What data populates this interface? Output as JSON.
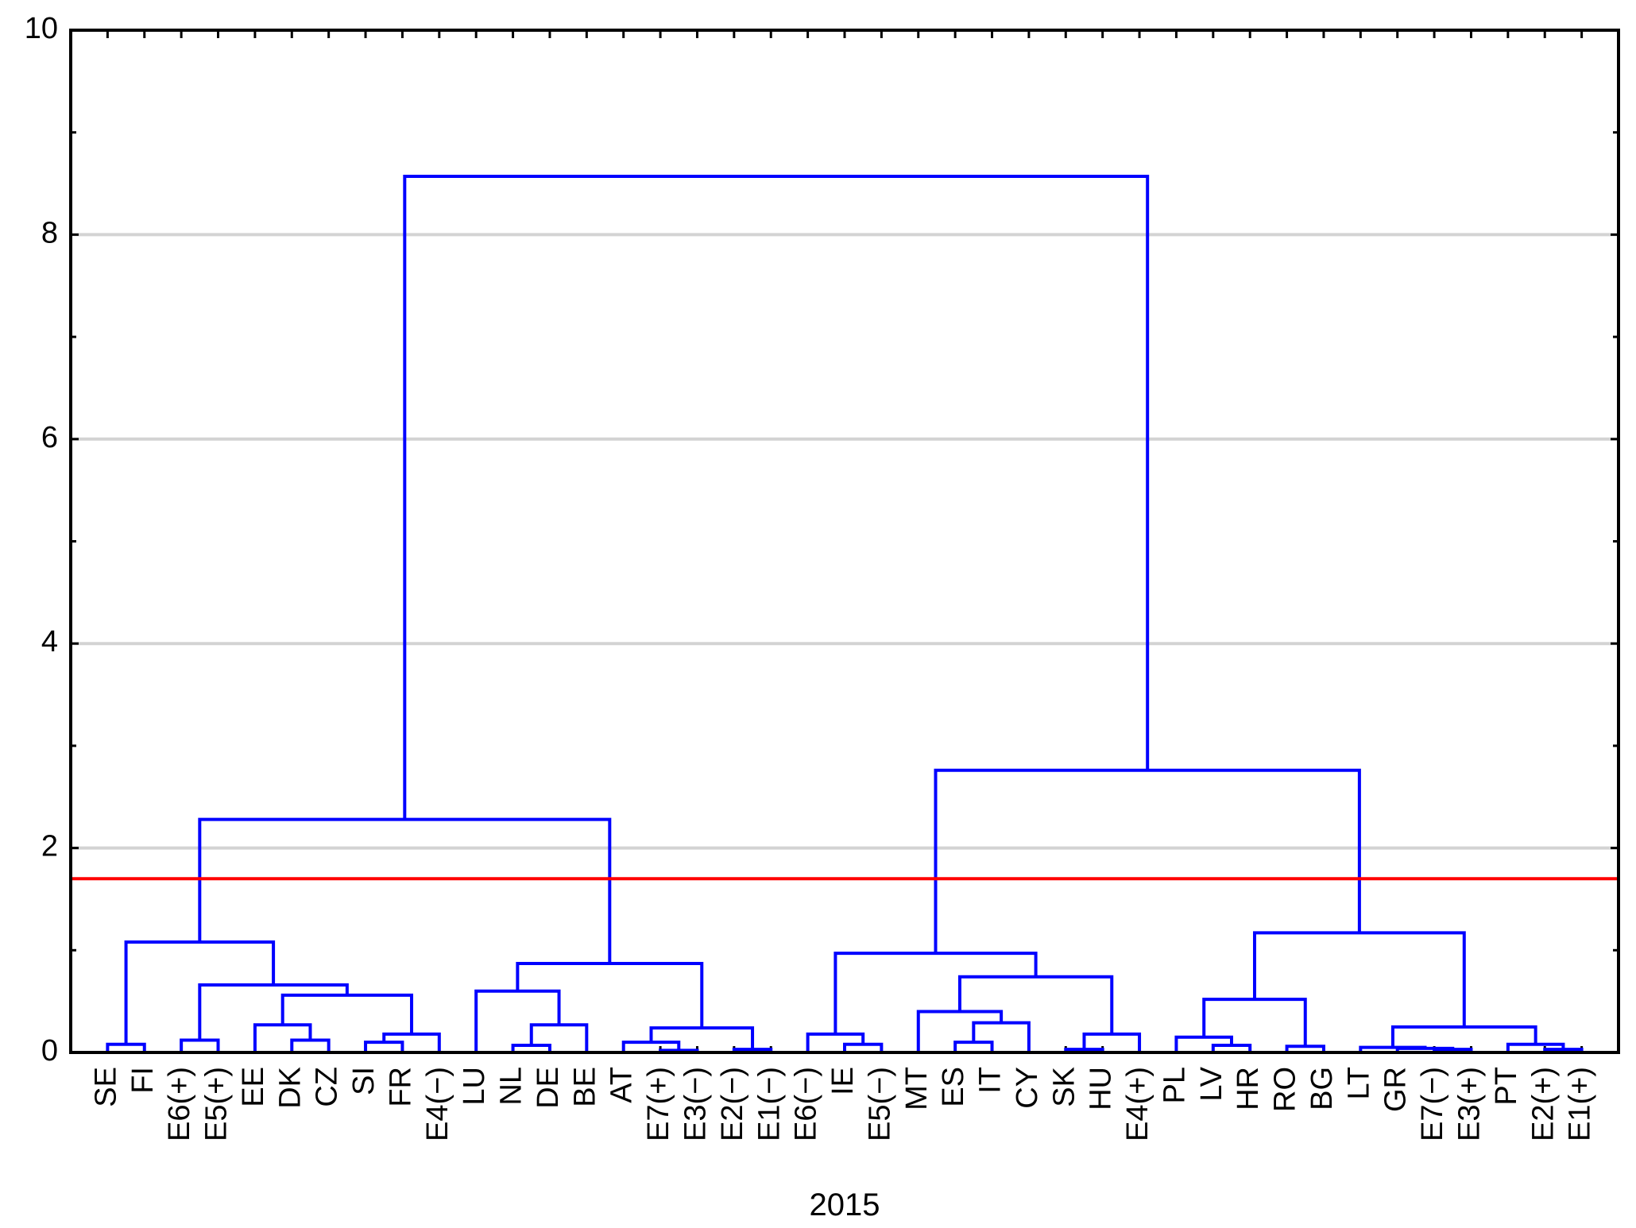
{
  "chart_data": {
    "type": "dendrogram",
    "xlabel": "2015",
    "leaves": [
      "SE",
      "FI",
      "E6(+)",
      "E5(+)",
      "EE",
      "DK",
      "CZ",
      "SI",
      "FR",
      "E4(−)",
      "LU",
      "NL",
      "DE",
      "BE",
      "AT",
      "E7(+)",
      "E3(−)",
      "E2(−)",
      "E1(−)",
      "E6(−)",
      "IE",
      "E5(−)",
      "MT",
      "ES",
      "IT",
      "CY",
      "SK",
      "HU",
      "E4(+)",
      "PL",
      "LV",
      "HR",
      "RO",
      "BG",
      "LT",
      "GR",
      "E7(−)",
      "E3(+)",
      "PT",
      "E2(+)",
      "E1(+)"
    ],
    "merges": [
      {
        "left": 0,
        "right": 1,
        "height": 0.08
      },
      {
        "left": 2,
        "right": 3,
        "height": 0.12
      },
      {
        "left": 5,
        "right": 6,
        "height": 0.12
      },
      {
        "left": 4,
        "right": 43,
        "height": 0.27
      },
      {
        "left": 7,
        "right": 8,
        "height": 0.1
      },
      {
        "left": 45,
        "right": 9,
        "height": 0.18
      },
      {
        "left": 44,
        "right": 46,
        "height": 0.56
      },
      {
        "left": 42,
        "right": 47,
        "height": 0.66
      },
      {
        "left": 41,
        "right": 48,
        "height": 1.08
      },
      {
        "left": 11,
        "right": 12,
        "height": 0.07
      },
      {
        "left": 50,
        "right": 13,
        "height": 0.27
      },
      {
        "left": 10,
        "right": 51,
        "height": 0.6
      },
      {
        "left": 15,
        "right": 16,
        "height": 0.02
      },
      {
        "left": 14,
        "right": 53,
        "height": 0.1
      },
      {
        "left": 17,
        "right": 18,
        "height": 0.03
      },
      {
        "left": 54,
        "right": 55,
        "height": 0.24
      },
      {
        "left": 52,
        "right": 56,
        "height": 0.87
      },
      {
        "left": 49,
        "right": 57,
        "height": 2.28
      },
      {
        "left": 20,
        "right": 21,
        "height": 0.08
      },
      {
        "left": 19,
        "right": 59,
        "height": 0.18
      },
      {
        "left": 23,
        "right": 24,
        "height": 0.1
      },
      {
        "left": 61,
        "right": 25,
        "height": 0.29
      },
      {
        "left": 22,
        "right": 62,
        "height": 0.4
      },
      {
        "left": 26,
        "right": 27,
        "height": 0.03
      },
      {
        "left": 64,
        "right": 28,
        "height": 0.18
      },
      {
        "left": 63,
        "right": 65,
        "height": 0.74
      },
      {
        "left": 60,
        "right": 66,
        "height": 0.97
      },
      {
        "left": 30,
        "right": 31,
        "height": 0.07
      },
      {
        "left": 29,
        "right": 68,
        "height": 0.15
      },
      {
        "left": 32,
        "right": 33,
        "height": 0.06
      },
      {
        "left": 69,
        "right": 70,
        "height": 0.52
      },
      {
        "left": 36,
        "right": 37,
        "height": 0.03
      },
      {
        "left": 35,
        "right": 72,
        "height": 0.04
      },
      {
        "left": 34,
        "right": 73,
        "height": 0.05
      },
      {
        "left": 39,
        "right": 40,
        "height": 0.03
      },
      {
        "left": 38,
        "right": 75,
        "height": 0.08
      },
      {
        "left": 74,
        "right": 76,
        "height": 0.25
      },
      {
        "left": 71,
        "right": 77,
        "height": 1.17
      },
      {
        "left": 67,
        "right": 78,
        "height": 2.76
      },
      {
        "left": 58,
        "right": 79,
        "height": 8.57
      }
    ],
    "ylim": [
      0,
      10
    ],
    "yticks": [
      0,
      2,
      4,
      6,
      8,
      10
    ],
    "grid": true,
    "color": "#0000ff",
    "threshold": 1.7,
    "threshold_color": "#ff0000"
  }
}
